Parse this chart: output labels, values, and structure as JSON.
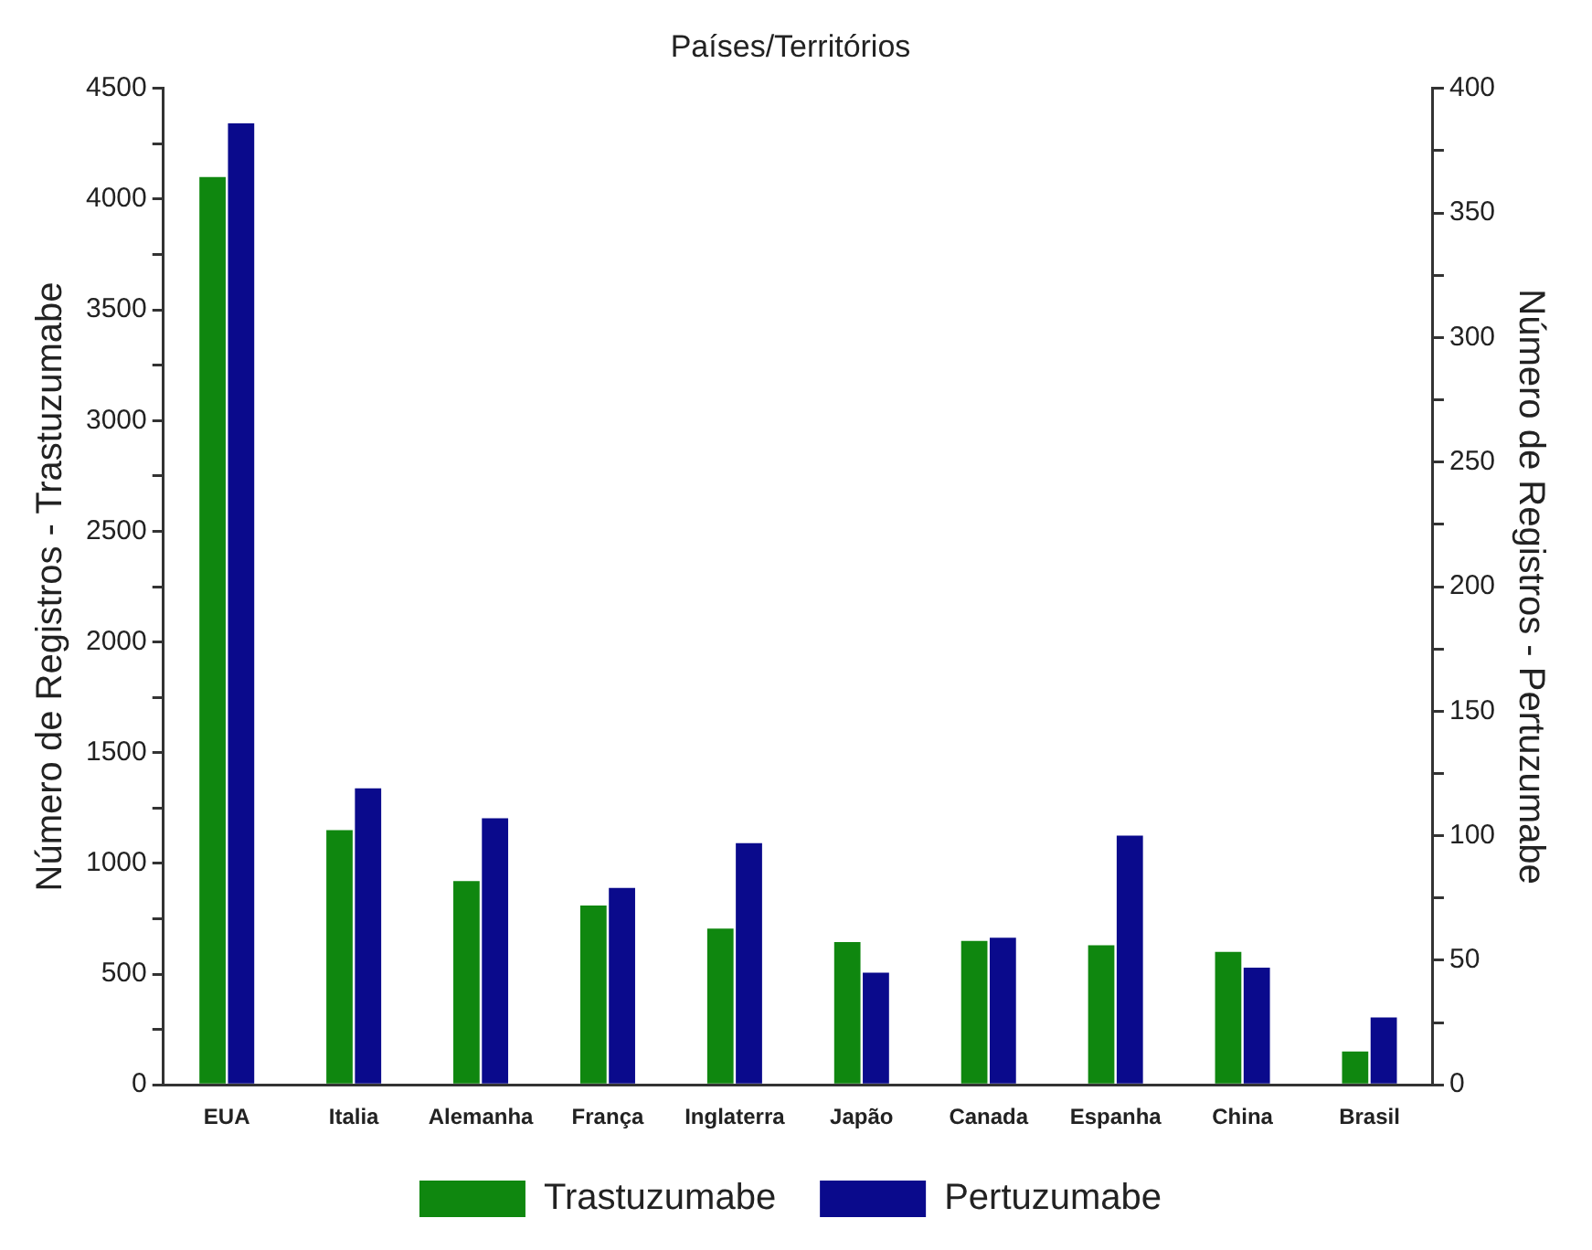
{
  "chart_data": {
    "type": "bar",
    "title": "Países/Territórios",
    "ylabel": "Número de Registros - Trastuzumabe",
    "y2label": "Número de Registros - Pertuzumabe",
    "categories": [
      "EUA",
      "Italia",
      "Alemanha",
      "França",
      "Inglaterra",
      "Japão",
      "Canada",
      "Espanha",
      "China",
      "Brasil"
    ],
    "series": [
      {
        "name": "Trastuzumabe",
        "color": "#0f870f",
        "values": [
          4100,
          1150,
          920,
          810,
          705,
          645,
          650,
          630,
          600,
          150
        ]
      },
      {
        "name": "Pertuzumabe",
        "color": "#0a0a8c",
        "axis": "y2",
        "values": [
          386,
          119,
          107,
          79,
          97,
          45,
          59,
          100,
          47,
          27
        ]
      }
    ],
    "ylim": [
      0,
      4500
    ],
    "yticks": [
      0,
      {
        "value": 250,
        "label": null
      },
      500,
      {
        "value": 750,
        "label": null
      },
      1000,
      {
        "value": 1250,
        "label": null
      },
      1500,
      {
        "value": 1750,
        "label": null
      },
      2000,
      {
        "value": 2250,
        "label": null
      },
      2500,
      {
        "value": 2750,
        "label": null
      },
      3000,
      {
        "value": 3250,
        "label": null
      },
      3500,
      {
        "value": 3750,
        "label": null
      },
      4000,
      {
        "value": 4250,
        "label": null
      },
      4500
    ],
    "y2lim": [
      0,
      400
    ],
    "y2ticks": [
      0,
      {
        "value": 25,
        "label": null
      },
      50,
      {
        "value": 75,
        "label": null
      },
      100,
      {
        "value": 125,
        "label": null
      },
      150,
      {
        "value": 175,
        "label": null
      },
      200,
      {
        "value": 225,
        "label": null
      },
      250,
      {
        "value": 275,
        "label": null
      },
      300,
      {
        "value": 325,
        "label": null
      },
      350,
      {
        "value": 375,
        "label": null
      },
      400
    ],
    "legend": "bottom"
  }
}
